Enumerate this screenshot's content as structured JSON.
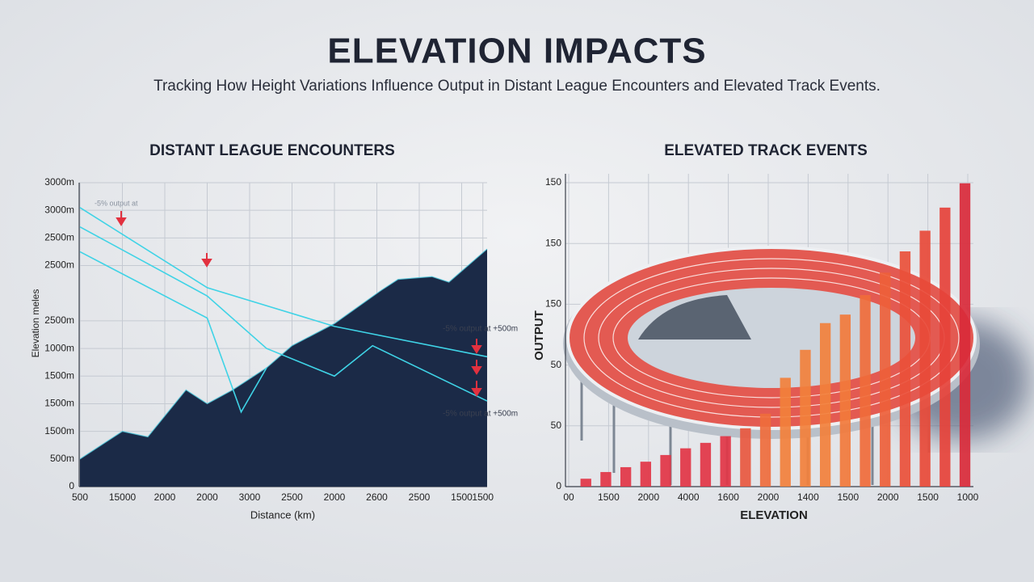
{
  "header": {
    "title": "ELEVATION IMPACTS",
    "subtitle": "Tracking How Height Variations Influence Output in Distant League Encounters and Elevated Track Events."
  },
  "chart_data": [
    {
      "type": "area",
      "title": "DISTANT LEAGUE ENCOUNTERS",
      "x_label": "Distance (km)",
      "y_label": "Elevation meles",
      "x": [
        0,
        1.0,
        1.6,
        2.5,
        3.0,
        3.6,
        4.4,
        5.0,
        6.0,
        7.1,
        7.5,
        8.3,
        8.7,
        9.6
      ],
      "values": [
        1.0,
        2.0,
        1.8,
        3.5,
        3.0,
        3.5,
        4.3,
        5.1,
        5.9,
        7.1,
        7.5,
        7.6,
        7.4,
        8.6
      ],
      "color": "#1b2a47",
      "lines": [
        {
          "x": [
            0,
            3.0,
            6.0,
            9.6
          ],
          "values": [
            10.1,
            7.2,
            5.8,
            4.7
          ]
        },
        {
          "x": [
            0,
            3.0,
            4.4,
            6.0,
            6.9,
            9.6
          ],
          "values": [
            9.4,
            6.9,
            5.0,
            4.0,
            5.1,
            3.1
          ]
        },
        {
          "x": [
            0,
            3.0,
            3.8,
            4.4
          ],
          "values": [
            8.5,
            6.1,
            2.7,
            4.3
          ]
        }
      ],
      "line_color": "#3fd3e6",
      "annotations": [
        "-5% output at",
        "-5% output at +500m",
        "-5% output at +500m"
      ],
      "xlim": [
        0,
        9.6
      ],
      "ylim": [
        0,
        11
      ],
      "xticks": [
        {
          "value": 0,
          "label": "500"
        },
        {
          "value": 1,
          "label": "15000"
        },
        {
          "value": 2,
          "label": "2000"
        },
        {
          "value": 3,
          "label": "2000"
        },
        {
          "value": 4,
          "label": "3000"
        },
        {
          "value": 5,
          "label": "2500"
        },
        {
          "value": 6,
          "label": "2000"
        },
        {
          "value": 7,
          "label": "2600"
        },
        {
          "value": 8,
          "label": "2500"
        },
        {
          "value": 9,
          "label": "1500"
        },
        {
          "value": 9.5,
          "label": "1500"
        }
      ],
      "yticks": [
        0,
        {
          "value": 1,
          "label": "500m"
        },
        {
          "value": 2,
          "label": "1500m"
        },
        {
          "value": 3,
          "label": "1500m"
        },
        {
          "value": 4,
          "label": "1500m"
        },
        {
          "value": 5,
          "label": "1000m"
        },
        {
          "value": 6,
          "label": "2500m"
        },
        {
          "value": 8,
          "label": "2500m"
        },
        {
          "value": 9,
          "label": "2500m"
        },
        {
          "value": 10,
          "label": "3000m"
        },
        {
          "value": 11,
          "label": "3000m"
        }
      ],
      "grid": true
    },
    {
      "type": "bar",
      "title": "ELEVATED TRACK EVENTS",
      "x_label": "ELEVATION",
      "y_label": "OUTPUT",
      "x": [
        0.43,
        0.93,
        1.43,
        1.93,
        2.43,
        2.93,
        3.43,
        3.93,
        4.43,
        4.93,
        5.43,
        5.93,
        6.43,
        6.93,
        7.43,
        7.93,
        8.43,
        8.93,
        9.43,
        9.93
      ],
      "values": [
        0.13,
        0.24,
        0.32,
        0.41,
        0.52,
        0.63,
        0.72,
        0.83,
        0.96,
        1.2,
        1.79,
        2.25,
        2.69,
        2.83,
        3.15,
        3.52,
        3.87,
        4.21,
        4.59,
        4.99
      ],
      "colors": [
        "#e23545",
        "#e23545",
        "#e23545",
        "#e23545",
        "#e23545",
        "#e23545",
        "#e23545",
        "#e23545",
        "#e8583f",
        "#ef6c3c",
        "#f2803b",
        "#f2803b",
        "#f2803b",
        "#f27a3b",
        "#f06b3a",
        "#ee603a",
        "#ea503a",
        "#e84a38",
        "#e6423a",
        "#d92a3a"
      ],
      "xlim": [
        0,
        10
      ],
      "ylim": [
        0,
        5
      ],
      "xticks": [
        {
          "value": 0,
          "label": "00"
        },
        {
          "value": 1,
          "label": "1500"
        },
        {
          "value": 2,
          "label": "2000"
        },
        {
          "value": 3,
          "label": "4000"
        },
        {
          "value": 4,
          "label": "1600"
        },
        {
          "value": 5,
          "label": "2000"
        },
        {
          "value": 6,
          "label": "1400"
        },
        {
          "value": 7,
          "label": "1500"
        },
        {
          "value": 8,
          "label": "2000"
        },
        {
          "value": 9,
          "label": "1500"
        },
        {
          "value": 10,
          "label": "1000"
        }
      ],
      "yticks": [
        0,
        {
          "value": 1,
          "label": "50"
        },
        {
          "value": 2,
          "label": "50"
        },
        {
          "value": 3,
          "label": "150"
        },
        {
          "value": 4,
          "label": "150"
        },
        {
          "value": 5,
          "label": "150"
        }
      ],
      "grid": true
    }
  ]
}
